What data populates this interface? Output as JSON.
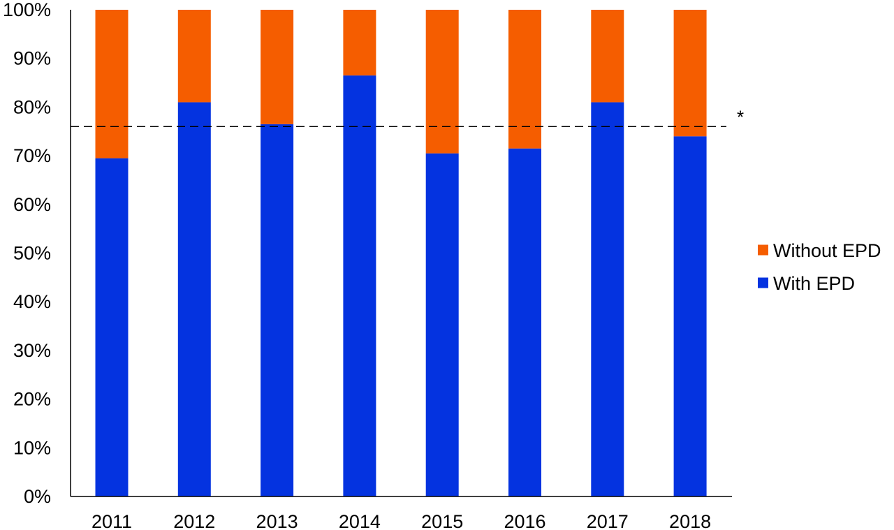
{
  "chart_data": {
    "type": "bar",
    "stacked": true,
    "categories": [
      "2011",
      "2012",
      "2013",
      "2014",
      "2015",
      "2016",
      "2017",
      "2018"
    ],
    "series": [
      {
        "name": "With EPD",
        "values": [
          69.5,
          81,
          76.5,
          86.5,
          70.5,
          71.5,
          81,
          74
        ],
        "color": "#0433e0"
      },
      {
        "name": "Without EPD",
        "values": [
          30.5,
          19,
          23.5,
          13.5,
          29.5,
          28.5,
          19,
          26
        ],
        "color": "#f55d00"
      }
    ],
    "ylim": [
      0,
      100
    ],
    "y_ticks": [
      "0%",
      "10%",
      "20%",
      "30%",
      "40%",
      "50%",
      "60%",
      "70%",
      "80%",
      "90%",
      "100%"
    ],
    "reference_line": {
      "value": 76,
      "style": "dashed",
      "color": "#000000",
      "annotation": "*"
    },
    "legend": {
      "position": "right",
      "order": [
        "Without EPD",
        "With EPD"
      ]
    },
    "title": "",
    "xlabel": "",
    "ylabel": "",
    "grid": false
  }
}
